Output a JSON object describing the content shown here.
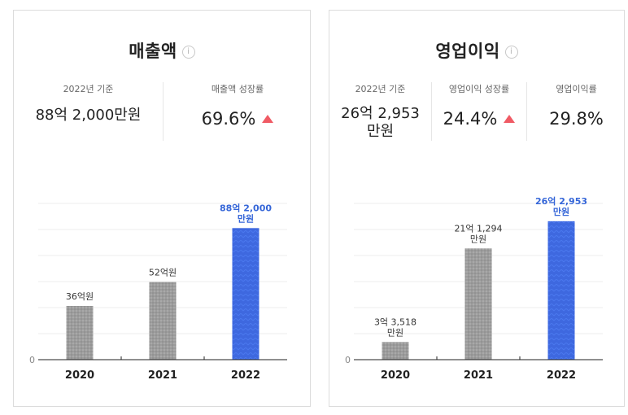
{
  "colors": {
    "bar_gray": "#9c9c9c",
    "bar_blue": "#3e68df",
    "highlight_text": "#3566d8",
    "arrow_up": "#f05a64"
  },
  "left_card": {
    "title": "매출액",
    "info_icon": "info-icon",
    "stat_base_label": "2022년 기준",
    "stat_base_value": "88억 2,000만원",
    "stat_growth_label": "매출액 성장률",
    "stat_growth_value": "69.6%",
    "stat_growth_trend": "up-arrow-icon"
  },
  "right_card": {
    "title": "영업이익",
    "info_icon": "info-icon",
    "stat_base_label": "2022년 기준",
    "stat_base_value_line1": "26억 2,953",
    "stat_base_value_line2": "만원",
    "stat_growth_label": "영업이익 성장률",
    "stat_growth_value": "24.4%",
    "stat_growth_trend": "up-arrow-icon",
    "stat_margin_label": "영업이익률",
    "stat_margin_value": "29.8%"
  },
  "chart_data": [
    {
      "type": "bar",
      "categories": [
        "2020",
        "2021",
        "2022"
      ],
      "values": [
        36,
        52,
        88.2
      ],
      "unit": "억원",
      "data_labels": [
        [
          "36억원"
        ],
        [
          "52억원"
        ],
        [
          "88억 2,000",
          "만원"
        ]
      ],
      "highlight_index": 2,
      "zero_label": "0",
      "ylim": [
        0,
        120
      ],
      "grid": true
    },
    {
      "type": "bar",
      "categories": [
        "2020",
        "2021",
        "2022"
      ],
      "values": [
        3.3518,
        21.1294,
        26.2953
      ],
      "unit": "억원",
      "data_labels": [
        [
          "3억 3,518",
          "만원"
        ],
        [
          "21억 1,294",
          "만원"
        ],
        [
          "26억 2,953",
          "만원"
        ]
      ],
      "highlight_index": 2,
      "zero_label": "0",
      "ylim": [
        0,
        34
      ],
      "grid": true
    }
  ]
}
